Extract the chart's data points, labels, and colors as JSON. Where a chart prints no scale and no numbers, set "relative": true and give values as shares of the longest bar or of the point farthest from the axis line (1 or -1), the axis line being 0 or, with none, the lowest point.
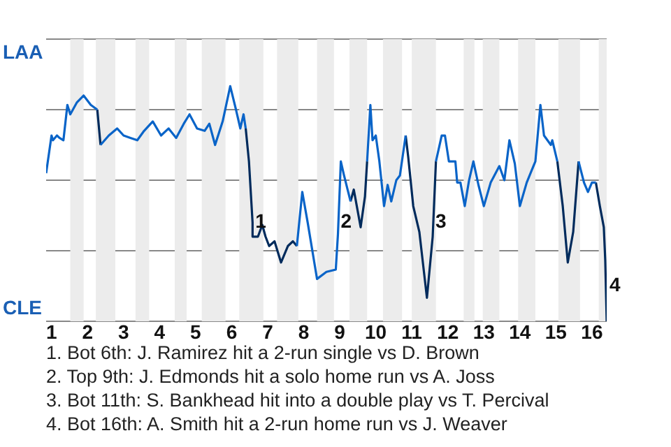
{
  "chart_data": {
    "type": "line",
    "relative": true,
    "series": [
      {
        "color": "#0a64c8",
        "x": [
          0.85,
          1.0,
          1.04,
          1.15,
          1.22,
          1.33,
          1.44,
          1.52,
          1.7,
          1.89,
          2.09,
          2.27,
          null,
          2.36,
          2.59,
          2.82,
          3.0,
          3.19,
          3.38,
          3.57,
          3.81,
          4.04,
          4.25,
          4.46,
          4.67,
          4.83,
          5.04,
          5.25,
          5.38,
          5.54,
          5.75,
          5.96,
          6.12,
          6.24,
          6.33,
          6.39,
          null,
          7.81,
          7.96,
          8.11,
          8.37,
          8.63,
          8.89,
          8.95,
          9.03,
          9.12,
          9.3,
          null,
          9.76,
          9.85,
          9.91,
          10.0,
          10.1,
          10.23,
          10.33,
          10.43,
          10.57,
          10.67,
          10.83,
          null,
          11.67,
          11.83,
          11.92,
          12.03,
          12.21,
          12.26,
          12.35,
          12.47,
          12.59,
          12.71,
          12.85,
          13.0,
          13.19,
          13.43,
          13.57,
          13.71,
          13.86,
          14.0,
          14.19,
          14.43,
          14.57,
          14.67,
          14.86,
          14.9,
          15.04,
          null,
          15.63,
          15.78,
          15.89,
          16.0,
          16.11
        ],
        "values": [
          0.63,
          0.79,
          0.77,
          0.79,
          0.78,
          0.77,
          0.92,
          0.88,
          0.93,
          0.96,
          0.92,
          0.9,
          null,
          0.75,
          0.79,
          0.82,
          0.79,
          0.78,
          0.77,
          0.81,
          0.85,
          0.79,
          0.82,
          0.78,
          0.84,
          0.88,
          0.82,
          0.81,
          0.84,
          0.75,
          0.85,
          1,
          0.9,
          0.82,
          0.88,
          0.82,
          null,
          0.32,
          0.55,
          0.42,
          0.18,
          0.21,
          0.22,
          0.37,
          0.68,
          0.62,
          0.51,
          null,
          0.68,
          0.92,
          0.77,
          0.79,
          0.68,
          0.49,
          0.58,
          0.51,
          0.6,
          0.62,
          0.79,
          null,
          0.68,
          0.79,
          0.79,
          0.68,
          0.68,
          0.59,
          0.59,
          0.49,
          0.6,
          0.68,
          0.58,
          0.49,
          0.59,
          0.66,
          0.6,
          0.77,
          0.67,
          0.49,
          0.59,
          0.68,
          0.92,
          0.79,
          0.75,
          0.77,
          0.68,
          null,
          0.68,
          0.59,
          0.55,
          0.59,
          0.59
        ]
      },
      {
        "color": "#002b5c",
        "x": [
          2.27,
          2.36,
          null,
          6.39,
          6.48,
          6.58,
          6.58,
          6.73,
          6.85,
          6.94,
          7.04,
          7.19,
          7.37,
          7.56,
          7.7,
          7.81,
          null,
          9.3,
          9.39,
          9.58,
          9.7,
          9.76,
          null,
          10.83,
          10.9,
          11.04,
          11.21,
          11.42,
          11.58,
          11.67,
          null,
          15.04,
          15.19,
          15.33,
          15.48,
          15.63,
          null,
          16.11,
          16.22,
          16.33,
          16.37,
          16.41
        ],
        "values": [
          0.9,
          0.75,
          null,
          0.82,
          0.68,
          0.42,
          0.36,
          0.36,
          0.41,
          0.36,
          0.32,
          0.34,
          0.25,
          0.32,
          0.34,
          0.32,
          null,
          0.51,
          0.56,
          0.4,
          0.53,
          0.68,
          null,
          0.79,
          0.7,
          0.49,
          0.38,
          0.1,
          0.36,
          0.68,
          null,
          0.68,
          0.49,
          0.25,
          0.38,
          0.68,
          null,
          0.59,
          0.49,
          0.4,
          0.26,
          0
        ]
      }
    ],
    "xlim": [
      0.85,
      16.41
    ],
    "xticks": [
      1,
      2,
      3,
      4,
      5,
      6,
      7,
      8,
      9,
      10,
      11,
      12,
      13,
      14,
      15,
      16
    ],
    "grid": "y",
    "bands": [
      {
        "axis": "x",
        "from": 1.52,
        "to": 1.89,
        "color": "#ececec"
      },
      {
        "axis": "x",
        "from": 2.23,
        "to": 2.77,
        "color": "#ececec"
      },
      {
        "axis": "x",
        "from": 3.33,
        "to": 3.71,
        "color": "#ececec"
      },
      {
        "axis": "x",
        "from": 4.42,
        "to": 4.75,
        "color": "#ececec"
      },
      {
        "axis": "x",
        "from": 5.17,
        "to": 5.83,
        "color": "#ececec"
      },
      {
        "axis": "x",
        "from": 6.21,
        "to": 6.88,
        "color": "#ececec"
      },
      {
        "axis": "x",
        "from": 7.26,
        "to": 7.85,
        "color": "#ececec"
      },
      {
        "axis": "x",
        "from": 8.37,
        "to": 8.84,
        "color": "#ececec"
      },
      {
        "axis": "x",
        "from": 9.27,
        "to": 9.76,
        "color": "#ececec"
      },
      {
        "axis": "x",
        "from": 10.2,
        "to": 10.73,
        "color": "#ececec"
      },
      {
        "axis": "x",
        "from": 11.0,
        "to": 11.67,
        "color": "#ececec"
      },
      {
        "axis": "x",
        "from": 12.44,
        "to": 12.74,
        "color": "#ececec"
      },
      {
        "axis": "x",
        "from": 12.97,
        "to": 13.43,
        "color": "#ececec"
      },
      {
        "axis": "x",
        "from": 13.95,
        "to": 14.43,
        "color": "#ececec"
      },
      {
        "axis": "x",
        "from": 15.07,
        "to": 15.67,
        "color": "#ececec"
      },
      {
        "axis": "x",
        "from": 16.19,
        "to": 16.41,
        "color": "#ececec"
      }
    ],
    "annotations": [
      "LAA",
      "CLE",
      {
        "text": "1",
        "x": 6.58,
        "y": 0.42
      },
      {
        "text": "2",
        "x": 8.95,
        "y": 0.42
      },
      {
        "text": "3",
        "x": 11.58,
        "y": 0.42
      },
      {
        "text": "4",
        "x": 16.41,
        "y": 0.15
      },
      "1. Bot 6th: J. Ramirez hit a 2-run single vs D. Brown",
      "2. Top 9th: J. Edmonds hit a solo home run vs A. Joss",
      "3. Bot 11th: S. Bankhead hit into a double play vs T. Percival",
      "4. Bot 16th: A. Smith hit a 2-run home run vs J. Weaver"
    ]
  }
}
